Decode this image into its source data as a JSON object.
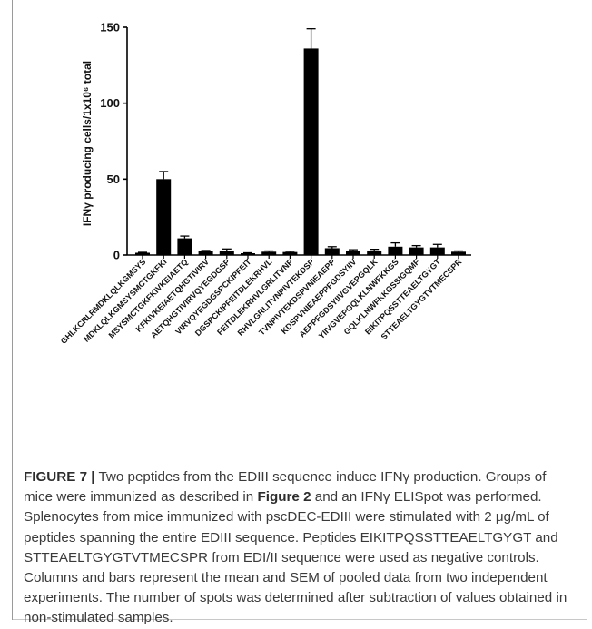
{
  "chart_data": {
    "type": "bar",
    "ylabel": "IFNγ producing cells/1x10⁶ total",
    "ylim": [
      0,
      150
    ],
    "yticks": [
      0,
      50,
      100,
      150
    ],
    "categories": [
      "GHLKCRLRMDKLQLKGMSYS",
      "MDKLQLKGMSYSMCTGKFKI",
      "MSYSMCTGKFKIVKEIAETQ",
      "KFKIVKEIAETQHGTIVIRV",
      "AETQHGTIVIRVQYEGDGSP",
      "VIRVQYEGDGSPCKIPFEIT",
      "DGSPCKIPFEITDLEKRHVL",
      "FEITDLEKRHVLGRLITVNP",
      "RHVLGRLITVNPIVTEKDSP",
      "TVNPIVTEKDSPVNIEAEPP",
      "KDSPVNIEAEPPFGDSYIIV",
      "AEPPFGDSYIIVGVEPGQLK",
      "YIIVGVEPGQLKLNWFKKGS",
      "GQLKLNWFKKGSSIGQMF",
      "EIKITPQSSTTEAELTGYGT",
      "STTEAELTGYGTVTMECSPR"
    ],
    "values": [
      1.5,
      50,
      11,
      2.5,
      3,
      1.2,
      2.2,
      2,
      136,
      4.5,
      3,
      3,
      5.5,
      5,
      5,
      2.2
    ],
    "errors": [
      0.3,
      5,
      1.5,
      0.5,
      1,
      0.3,
      0.5,
      0.5,
      13,
      1,
      0.5,
      0.8,
      2.5,
      1.2,
      2,
      0.5
    ]
  },
  "caption": {
    "label": "FIGURE 7 |",
    "text1": " Two peptides from the EDIII sequence induce IFNγ production. Groups of mice were immunized as described in ",
    "ref": "Figure 2",
    "text2": " and an IFNγ ELISpot was performed. Splenocytes from mice immunized with pscDEC-EDIII were stimulated with 2 μg/mL of peptides spanning the entire EDIII sequence. Peptides EIKITPQSSTTEAELTGYGT and STTEAELTGYGTVTMECSPR from EDI/II sequence were used as negative controls. Columns and bars represent the mean and SEM of pooled data from two independent experiments. The number of spots was determined after subtraction of values obtained in non-stimulated samples."
  }
}
